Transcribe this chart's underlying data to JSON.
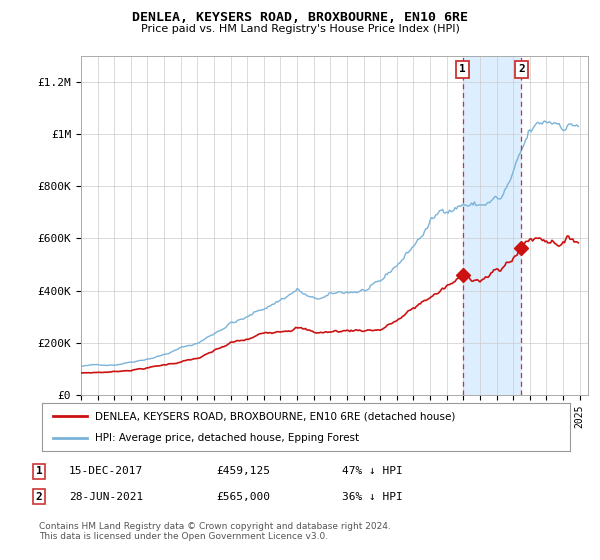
{
  "title": "DENLEA, KEYSERS ROAD, BROXBOURNE, EN10 6RE",
  "subtitle": "Price paid vs. HM Land Registry's House Price Index (HPI)",
  "ylim": [
    0,
    1300000
  ],
  "yticks": [
    0,
    200000,
    400000,
    600000,
    800000,
    1000000,
    1200000
  ],
  "ytick_labels": [
    "£0",
    "£200K",
    "£400K",
    "£600K",
    "£800K",
    "£1M",
    "£1.2M"
  ],
  "xlim_start": 1995.0,
  "xlim_end": 2025.5,
  "bg_color": "#ffffff",
  "plot_bg_color": "#ffffff",
  "grid_color": "#cccccc",
  "hpi_color": "#7ab3d9",
  "highlight_color": "#ddeeff",
  "price_color": "#cc1111",
  "marker1_year": 2017.96,
  "marker2_year": 2021.49,
  "marker1_price": 459125,
  "marker2_price": 565000,
  "note1_label": "15-DEC-2017",
  "note1_price": "£459,125",
  "note1_pct": "47% ↓ HPI",
  "note2_label": "28-JUN-2021",
  "note2_price": "£565,000",
  "note2_pct": "36% ↓ HPI",
  "legend_line1": "DENLEA, KEYSERS ROAD, BROXBOURNE, EN10 6RE (detached house)",
  "legend_line2": "HPI: Average price, detached house, Epping Forest",
  "footnote": "Contains HM Land Registry data © Crown copyright and database right 2024.\nThis data is licensed under the Open Government Licence v3.0."
}
